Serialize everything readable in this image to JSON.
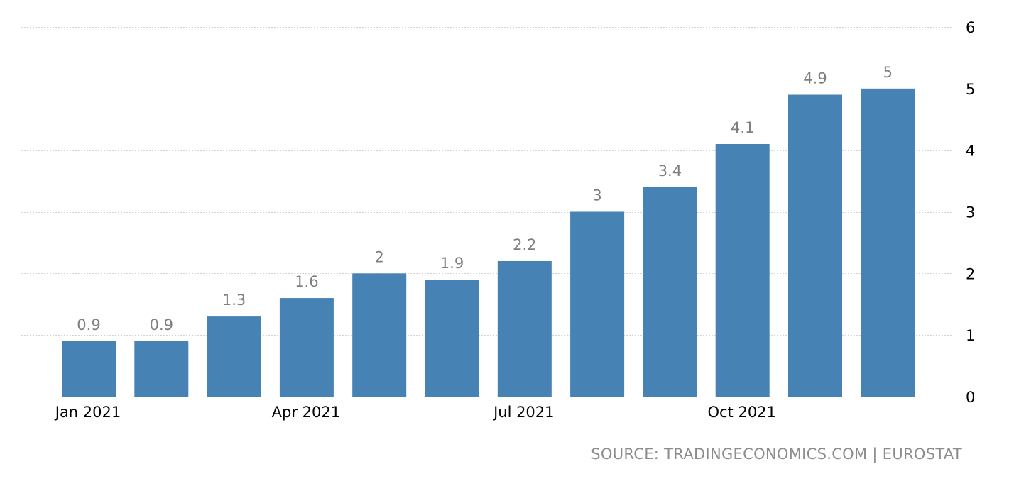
{
  "chart_data": {
    "type": "bar",
    "categories": [
      "Jan 2021",
      "Feb 2021",
      "Mar 2021",
      "Apr 2021",
      "May 2021",
      "Jun 2021",
      "Jul 2021",
      "Aug 2021",
      "Sep 2021",
      "Oct 2021",
      "Nov 2021",
      "Dec 2021"
    ],
    "values": [
      0.9,
      0.9,
      1.3,
      1.6,
      2,
      1.9,
      2.2,
      3,
      3.4,
      4.1,
      4.9,
      5
    ],
    "value_labels": [
      "0.9",
      "0.9",
      "1.3",
      "1.6",
      "2",
      "1.9",
      "2.2",
      "3",
      "3.4",
      "4.1",
      "4.9",
      "5"
    ],
    "x_tick_labels": [
      {
        "category": "Jan 2021",
        "label": "Jan 2021"
      },
      {
        "category": "Apr 2021",
        "label": "Apr 2021"
      },
      {
        "category": "Jul 2021",
        "label": "Jul 2021"
      },
      {
        "category": "Oct 2021",
        "label": "Oct 2021"
      }
    ],
    "y_ticks": [
      0,
      1,
      2,
      3,
      4,
      5,
      6
    ],
    "ylim": [
      0,
      6
    ],
    "y_axis_side": "right",
    "grid": true,
    "title": "",
    "xlabel": "",
    "ylabel": "",
    "colors": {
      "bar": "#4682b4",
      "value_label": "#7f7f7f",
      "tick_label": "#000000",
      "grid": "#d3d3d3"
    }
  },
  "source": "SOURCE: TRADINGECONOMICS.COM | EUROSTAT"
}
